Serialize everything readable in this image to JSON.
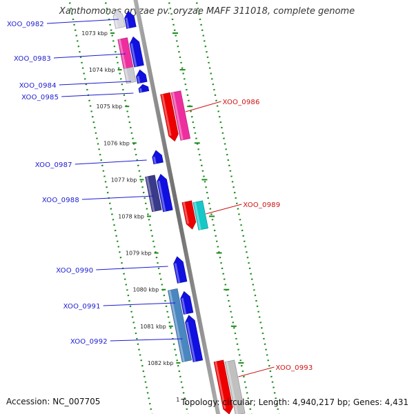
{
  "title": "Xanthomonas oryzae pv. oryzae MAFF 311018, complete genome",
  "footer": {
    "accession": "Accession: NC_007705",
    "note_marker": "1",
    "topology": "Topology: circular; Length: 4,940,217 bp; Genes: 4,431"
  },
  "colors": {
    "backbone": "#8a8a8a",
    "guide_dots": "#1a8a1a",
    "left_label": "#1a1ad0",
    "right_label": "#cc1111",
    "tick_text": "#222222"
  },
  "axis": {
    "unit": "kbp",
    "ticks": [
      {
        "value": 1073,
        "label": "1073 kbp"
      },
      {
        "value": 1074,
        "label": "1074 kbp"
      },
      {
        "value": 1075,
        "label": "1075 kbp"
      },
      {
        "value": 1076,
        "label": "1076 kbp"
      },
      {
        "value": 1077,
        "label": "1077 kbp"
      },
      {
        "value": 1078,
        "label": "1078 kbp"
      },
      {
        "value": 1079,
        "label": "1079 kbp"
      },
      {
        "value": 1080,
        "label": "1080 kbp"
      },
      {
        "value": 1081,
        "label": "1081 kbp"
      },
      {
        "value": 1082,
        "label": "1082 kbp"
      }
    ]
  },
  "labels": [
    {
      "id": "XOO_0982",
      "side": "left"
    },
    {
      "id": "XOO_0983",
      "side": "left"
    },
    {
      "id": "XOO_0984",
      "side": "left"
    },
    {
      "id": "XOO_0985",
      "side": "left"
    },
    {
      "id": "XOO_0986",
      "side": "right"
    },
    {
      "id": "XOO_0987",
      "side": "left"
    },
    {
      "id": "XOO_0988",
      "side": "left"
    },
    {
      "id": "XOO_0989",
      "side": "right"
    },
    {
      "id": "XOO_0990",
      "side": "left"
    },
    {
      "id": "XOO_0991",
      "side": "left"
    },
    {
      "id": "XOO_0992",
      "side": "left"
    },
    {
      "id": "XOO_0993",
      "side": "right"
    }
  ],
  "features": [
    {
      "name": "XOO_0982",
      "start": 1072.35,
      "end": 1072.85,
      "lane": -2,
      "color": "#d8d8e0",
      "dir": "up"
    },
    {
      "name": "XOO_0982-partner",
      "start": 1072.4,
      "end": 1072.85,
      "lane": -1,
      "color": "#1010e0",
      "dir": "up"
    },
    {
      "name": "XOO_0983",
      "start": 1073.15,
      "end": 1073.95,
      "lane": -2,
      "color": "#ee2e9e",
      "dir": "none"
    },
    {
      "name": "XOO_0983-partner",
      "start": 1073.1,
      "end": 1073.9,
      "lane": -1,
      "color": "#1010e0",
      "dir": "up"
    },
    {
      "name": "XOO_0984",
      "start": 1073.95,
      "end": 1074.35,
      "lane": -2,
      "color": "#c8c8d0",
      "dir": "none"
    },
    {
      "name": "XOO_0984-partner",
      "start": 1074.0,
      "end": 1074.35,
      "lane": -1,
      "color": "#1010e0",
      "dir": "up"
    },
    {
      "name": "XOO_0985",
      "start": 1074.4,
      "end": 1074.6,
      "lane": -1,
      "color": "#1010e0",
      "dir": "up"
    },
    {
      "name": "XOO_0986",
      "start": 1074.65,
      "end": 1075.95,
      "lane": 1,
      "color": "#ee0000",
      "dir": "down"
    },
    {
      "name": "XOO_0986-partner",
      "start": 1074.6,
      "end": 1075.9,
      "lane": 2,
      "color": "#ee2e9e",
      "dir": "none"
    },
    {
      "name": "XOO_0987",
      "start": 1076.2,
      "end": 1076.55,
      "lane": -1,
      "color": "#1010e0",
      "dir": "up"
    },
    {
      "name": "XOO_0988",
      "start": 1076.9,
      "end": 1077.85,
      "lane": -2,
      "color": "#3a3a8a",
      "dir": "none"
    },
    {
      "name": "XOO_0988-partner",
      "start": 1076.85,
      "end": 1077.85,
      "lane": -1,
      "color": "#1010e0",
      "dir": "up"
    },
    {
      "name": "XOO_0989",
      "start": 1077.6,
      "end": 1078.35,
      "lane": 1,
      "color": "#ee0000",
      "dir": "down"
    },
    {
      "name": "XOO_0989-partner",
      "start": 1077.6,
      "end": 1078.35,
      "lane": 2,
      "color": "#16c8c8",
      "dir": "none"
    },
    {
      "name": "XOO_0990",
      "start": 1079.1,
      "end": 1079.8,
      "lane": -1,
      "color": "#1010e0",
      "dir": "up"
    },
    {
      "name": "XOO_0991",
      "start": 1080.05,
      "end": 1080.65,
      "lane": -1,
      "color": "#1010e0",
      "dir": "up"
    },
    {
      "name": "XOO_0992",
      "start": 1080.0,
      "end": 1081.95,
      "lane": -2,
      "color": "#4a86c0",
      "dir": "none"
    },
    {
      "name": "XOO_0992-partner",
      "start": 1080.7,
      "end": 1081.95,
      "lane": -1,
      "color": "#1010e0",
      "dir": "up"
    },
    {
      "name": "XOO_0993",
      "start": 1081.95,
      "end": 1083.4,
      "lane": 1,
      "color": "#ee0000",
      "dir": "down"
    },
    {
      "name": "XOO_0993-partner",
      "start": 1081.95,
      "end": 1083.4,
      "lane": 2,
      "color": "#c0c0c0",
      "dir": "none"
    }
  ]
}
